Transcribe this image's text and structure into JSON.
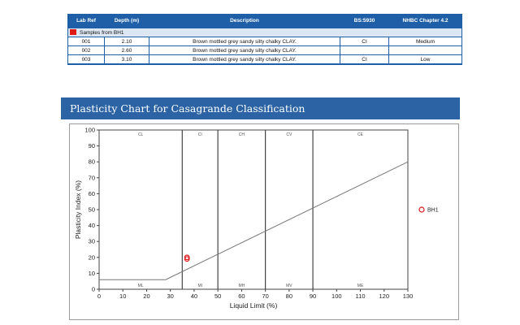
{
  "table": {
    "headers": [
      "Lab Ref",
      "Depth (m)",
      "Description",
      "BS:5930",
      "NHBC Chapter 4.2"
    ],
    "group_label": "Samples from BH1",
    "group_color": "#e01818",
    "rows": [
      {
        "lab_ref": "001",
        "depth": "2.10",
        "description": "Brown mottled grey sandy silty chalky CLAY.",
        "bs5930": "CI",
        "nhbc": "Medium"
      },
      {
        "lab_ref": "002",
        "depth": "2.60",
        "description": "Brown mottled grey sandy silty chalky CLAY.",
        "bs5930": "",
        "nhbc": ""
      },
      {
        "lab_ref": "003",
        "depth": "3.10",
        "description": "Brown mottled grey sandy silty chalky CLAY.",
        "bs5930": "CI",
        "nhbc": "Low"
      }
    ]
  },
  "chart_title": "Plasticity Chart for Casagrande Classification",
  "chart_data": {
    "type": "scatter",
    "xlabel": "Liquid Limit (%)",
    "ylabel": "Plasticity Index (%)",
    "xlim": [
      0,
      130
    ],
    "ylim": [
      0,
      100
    ],
    "x_ticks": [
      0,
      10,
      20,
      30,
      40,
      50,
      60,
      70,
      80,
      90,
      100,
      110,
      120,
      130
    ],
    "y_ticks": [
      0,
      10,
      20,
      30,
      40,
      50,
      60,
      70,
      80,
      90,
      100
    ],
    "zone_boundaries_x": [
      35,
      50,
      70,
      90
    ],
    "a_line": [
      [
        0,
        6
      ],
      [
        28,
        6
      ],
      [
        130,
        80
      ]
    ],
    "zones_top": [
      {
        "label": "CL",
        "x": 17.5
      },
      {
        "label": "CI",
        "x": 42.5
      },
      {
        "label": "CH",
        "x": 60
      },
      {
        "label": "CV",
        "x": 80
      },
      {
        "label": "CE",
        "x": 110
      }
    ],
    "zones_bottom": [
      {
        "label": "ML",
        "x": 17.5
      },
      {
        "label": "MI",
        "x": 42.5
      },
      {
        "label": "MH",
        "x": 60
      },
      {
        "label": "MV",
        "x": 80
      },
      {
        "label": "ME",
        "x": 110
      }
    ],
    "series": [
      {
        "name": "BH1",
        "color": "#e01818",
        "points": [
          [
            37,
            20
          ],
          [
            37,
            19
          ]
        ]
      }
    ],
    "legend_position": "right"
  }
}
